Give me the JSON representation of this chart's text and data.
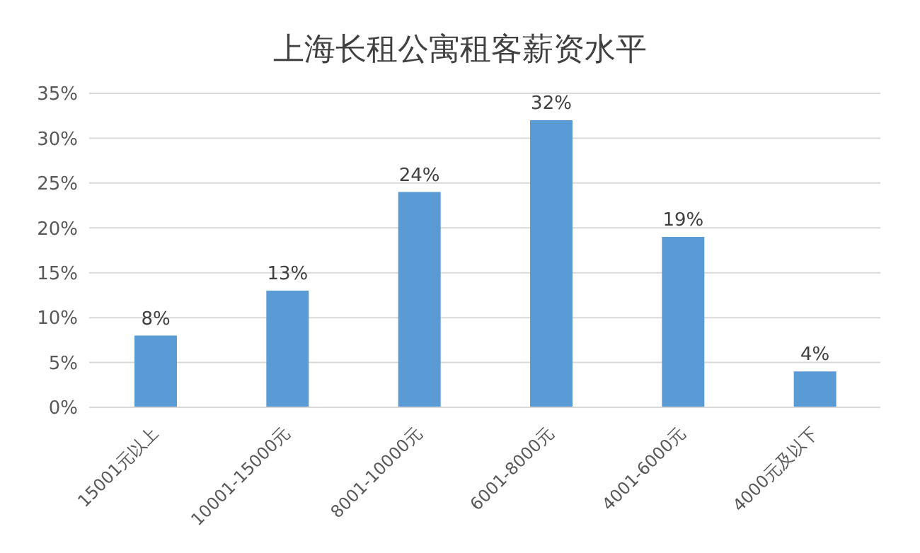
{
  "chart_data": {
    "type": "bar",
    "title": "上海长租公寓租客薪资水平",
    "categories": [
      "15001元以上",
      "10001-15000元",
      "8001-10000元",
      "6001-8000元",
      "4001-6000元",
      "4000元及以下"
    ],
    "values": [
      8,
      13,
      24,
      32,
      19,
      4
    ],
    "value_labels": [
      "8%",
      "13%",
      "24%",
      "32%",
      "19%",
      "4%"
    ],
    "color": "#5b9bd5",
    "ylim": [
      0,
      35
    ],
    "yticks": [
      {
        "value": 0,
        "label": "0%"
      },
      {
        "value": 5,
        "label": "5%"
      },
      {
        "value": 10,
        "label": "10%"
      },
      {
        "value": 15,
        "label": "15%"
      },
      {
        "value": 20,
        "label": "20%"
      },
      {
        "value": 25,
        "label": "25%"
      },
      {
        "value": 30,
        "label": "30%"
      },
      {
        "value": 35,
        "label": "35%"
      }
    ],
    "grid": "y"
  }
}
